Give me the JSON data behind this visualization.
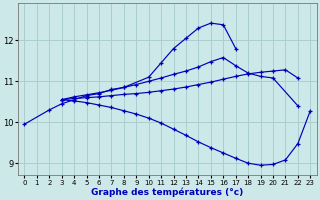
{
  "xlabel": "Graphe des températures (°c)",
  "background_color": "#cce8e8",
  "grid_color": "#aacece",
  "line_color": "#0000bb",
  "ylim": [
    8.7,
    12.9
  ],
  "yticks": [
    9,
    10,
    11,
    12
  ],
  "xlim": [
    -0.5,
    23.5
  ],
  "xticks": [
    0,
    1,
    2,
    3,
    4,
    5,
    6,
    7,
    8,
    9,
    10,
    11,
    12,
    13,
    14,
    15,
    16,
    17,
    18,
    19,
    20,
    21,
    22,
    23
  ],
  "curve1_x": [
    0,
    2,
    3,
    4,
    5,
    6,
    7,
    8,
    10,
    11,
    12,
    13,
    14,
    15,
    16,
    17
  ],
  "curve1_y": [
    9.95,
    10.3,
    10.45,
    10.55,
    10.65,
    10.7,
    10.8,
    10.85,
    11.1,
    11.45,
    11.8,
    12.05,
    12.3,
    12.42,
    12.38,
    11.8
  ],
  "curve2_x": [
    3,
    4,
    5,
    6,
    7,
    8,
    9,
    10,
    11,
    12,
    13,
    14,
    15,
    16,
    17,
    18,
    19,
    20,
    22
  ],
  "curve2_y": [
    10.55,
    10.62,
    10.67,
    10.72,
    10.78,
    10.85,
    10.92,
    11.0,
    11.08,
    11.17,
    11.25,
    11.35,
    11.48,
    11.58,
    11.38,
    11.2,
    11.12,
    11.08,
    10.4
  ],
  "curve3_x": [
    3,
    4,
    5,
    6,
    7,
    8,
    9,
    10,
    11,
    12,
    13,
    14,
    15,
    16,
    17,
    18,
    19,
    20,
    21,
    22
  ],
  "curve3_y": [
    10.55,
    10.58,
    10.6,
    10.62,
    10.65,
    10.68,
    10.7,
    10.73,
    10.77,
    10.81,
    10.86,
    10.92,
    10.98,
    11.05,
    11.12,
    11.18,
    11.22,
    11.25,
    11.28,
    11.08
  ],
  "curve4_x": [
    3,
    4,
    5,
    6,
    7,
    8,
    9,
    10,
    11,
    12,
    13,
    14,
    15,
    16,
    17,
    18,
    19,
    20,
    21,
    22,
    23
  ],
  "curve4_y": [
    10.55,
    10.52,
    10.48,
    10.42,
    10.36,
    10.28,
    10.2,
    10.1,
    9.98,
    9.83,
    9.68,
    9.52,
    9.38,
    9.25,
    9.12,
    9.0,
    8.95,
    8.97,
    9.08,
    9.48,
    10.28
  ]
}
